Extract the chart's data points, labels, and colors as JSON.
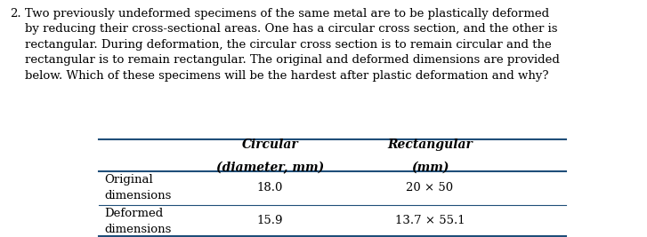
{
  "question_number": "2.",
  "question_text": "Two previously undeformed specimens of the same metal are to be plastically deformed\nby reducing their cross-sectional areas. One has a circular cross section, and the other is\nrectangular. During deformation, the circular cross section is to remain circular and the\nrectangular is to remain rectangular. The original and deformed dimensions are provided\nbelow. Which of these specimens will be the hardest after plastic deformation and why?",
  "col1_header_line1": "Circular",
  "col1_header_line2": "(diameter, mm)",
  "col2_header_line1": "Rectangular",
  "col2_header_line2": "(mm)",
  "row1_label_line1": "Original",
  "row1_label_line2": "dimensions",
  "row1_col1": "18.0",
  "row1_col2": "20 × 50",
  "row2_label_line1": "Deformed",
  "row2_label_line2": "dimensions",
  "row2_col1": "15.9",
  "row2_col2": "13.7 × 55.1",
  "line_color": "#1F4E79",
  "text_color": "#000000",
  "bg_color": "#ffffff",
  "font_size_body": 9.5,
  "font_size_header": 10.0,
  "font_size_question": 9.5
}
